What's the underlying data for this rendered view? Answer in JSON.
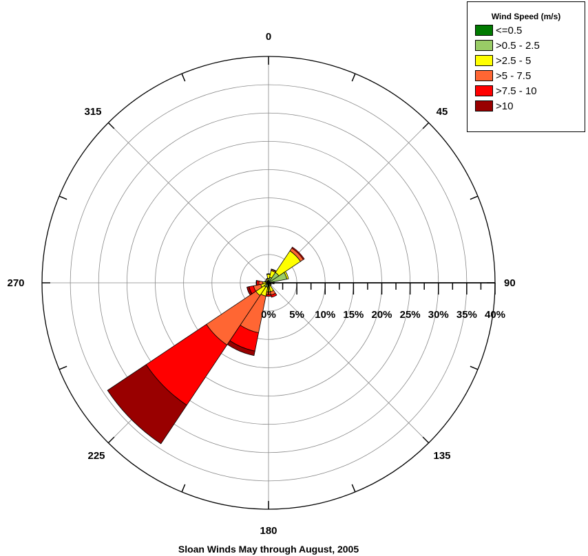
{
  "chart_data": {
    "type": "windrose",
    "title": "Sloan Winds  May through August, 2005",
    "direction_labels": [
      "0",
      "45",
      "90",
      "135",
      "180",
      "225",
      "270",
      "315"
    ],
    "radial_tick_labels": [
      "0%",
      "5%",
      "10%",
      "15%",
      "20%",
      "25%",
      "30%",
      "35%",
      "40%"
    ],
    "radial_max": 40,
    "sector_width_deg": 22.5,
    "legend": {
      "title": "Wind Speed (m/s)",
      "placement": "top-right",
      "bins": [
        {
          "label": "<=0.5",
          "color": "#007A00"
        },
        {
          "label": ">0.5 - 2.5",
          "color": "#99CC66"
        },
        {
          "label": ">2.5 - 5",
          "color": "#FFFF00"
        },
        {
          "label": ">5 - 7.5",
          "color": "#FF6633"
        },
        {
          "label": ">7.5 - 10",
          "color": "#FF0000"
        },
        {
          "label": ">10",
          "color": "#990000"
        }
      ]
    },
    "sectors": [
      {
        "direction": 0,
        "values": [
          0.2,
          0.6,
          0.7,
          0.1,
          0,
          0
        ]
      },
      {
        "direction": 22.5,
        "values": [
          0.2,
          0.8,
          1.2,
          0.2,
          0.1,
          0
        ]
      },
      {
        "direction": 45,
        "values": [
          0.2,
          2.0,
          4.6,
          0.6,
          0.2,
          0
        ]
      },
      {
        "direction": 67.5,
        "values": [
          0.2,
          3.1,
          0.3,
          0,
          0,
          0
        ]
      },
      {
        "direction": 90,
        "values": [
          0.2,
          0.6,
          0.2,
          0,
          0,
          0
        ]
      },
      {
        "direction": 112.5,
        "values": [
          0.1,
          0.3,
          0.1,
          0,
          0,
          0
        ]
      },
      {
        "direction": 135,
        "values": [
          0.1,
          0.3,
          0.2,
          0,
          0,
          0
        ]
      },
      {
        "direction": 157.5,
        "values": [
          0.1,
          0.5,
          1.0,
          0.6,
          0.4,
          0
        ]
      },
      {
        "direction": 180,
        "values": [
          0.2,
          0.4,
          1.0,
          0.5,
          0.3,
          0
        ]
      },
      {
        "direction": 202.5,
        "values": [
          0.2,
          0.6,
          1.6,
          6.6,
          3.3,
          0.8
        ]
      },
      {
        "direction": 225,
        "values": [
          0.2,
          0.7,
          1.8,
          10.5,
          12.8,
          8.2
        ]
      },
      {
        "direction": 247.5,
        "values": [
          0.1,
          0.4,
          0.9,
          1.3,
          0.8,
          0.4
        ]
      },
      {
        "direction": 270,
        "values": [
          0.1,
          0.3,
          0.6,
          0.7,
          0.4,
          0.1
        ]
      },
      {
        "direction": 292.5,
        "values": [
          0.1,
          0.3,
          0.2,
          0.1,
          0,
          0
        ]
      },
      {
        "direction": 315,
        "values": [
          0.1,
          0.2,
          0.1,
          0,
          0,
          0
        ]
      },
      {
        "direction": 337.5,
        "values": [
          0.1,
          0.3,
          0.3,
          0.1,
          0,
          0
        ]
      }
    ]
  }
}
